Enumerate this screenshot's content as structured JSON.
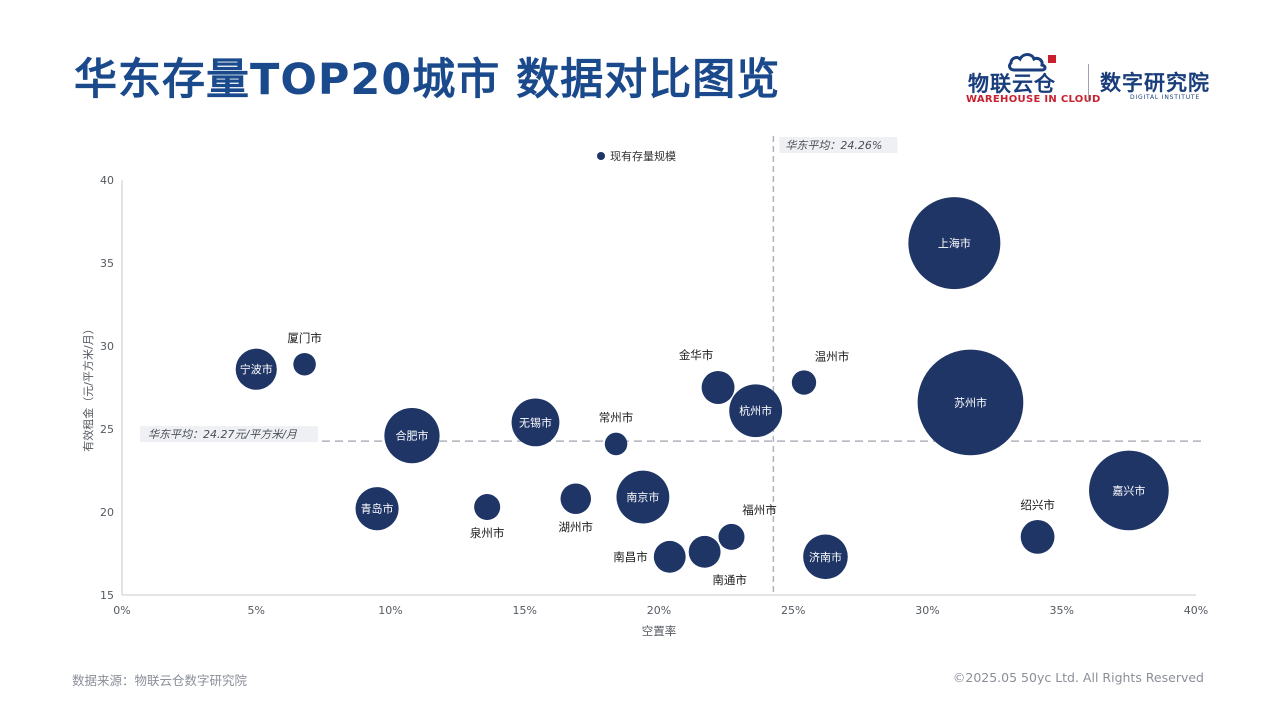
{
  "page": {
    "title": "华东存量TOP20城市 数据对比图览",
    "footer_source": "数据来源：物联云仓数字研究院",
    "footer_copyright": "©2025.05 50yc Ltd. All Rights Reserved"
  },
  "logos": {
    "brand_cn": "物联云仓",
    "brand_en": "WAREHOUSE IN CLOUD",
    "institute_cn": "数字研究院",
    "institute_en": "DIGITAL INSTITUTE"
  },
  "colors": {
    "bubble": "#1f3566",
    "title": "#1a4a8c",
    "reference_line": "#aeb3ba",
    "annotation_bg": "#eef0f3"
  },
  "chart_data": {
    "type": "scatter",
    "subtype": "bubble",
    "xlabel": "空置率",
    "ylabel": "有效租金（元/平方米/月）",
    "xlim": [
      0,
      0.4
    ],
    "ylim": [
      15,
      40
    ],
    "x_ticks": [
      0,
      0.05,
      0.1,
      0.15,
      0.2,
      0.25,
      0.3,
      0.35,
      0.4
    ],
    "x_tick_labels": [
      "0%",
      "5%",
      "10%",
      "15%",
      "20%",
      "25%",
      "30%",
      "35%",
      "40%"
    ],
    "y_ticks": [
      15,
      20,
      25,
      30,
      35,
      40
    ],
    "y_tick_labels": [
      "15",
      "20",
      "25",
      "30",
      "35",
      "40"
    ],
    "grid": false,
    "legend": {
      "label": "现有存量规模",
      "position": "top-center"
    },
    "reference_lines": {
      "x": {
        "value": 0.2426,
        "label": "华东平均：24.26%"
      },
      "y": {
        "value": 24.27,
        "label": "华东平均：24.27元/平方米/月"
      }
    },
    "points": [
      {
        "name": "上海市",
        "x": 0.31,
        "y": 36.2,
        "size": 1.0,
        "label_pos": "inside"
      },
      {
        "name": "苏州市",
        "x": 0.316,
        "y": 26.6,
        "size": 1.32,
        "label_pos": "inside"
      },
      {
        "name": "嘉兴市",
        "x": 0.375,
        "y": 21.3,
        "size": 0.75,
        "label_pos": "inside"
      },
      {
        "name": "绍兴市",
        "x": 0.341,
        "y": 18.5,
        "size": 0.135,
        "label_pos": "above"
      },
      {
        "name": "济南市",
        "x": 0.262,
        "y": 17.3,
        "size": 0.235,
        "label_pos": "inside"
      },
      {
        "name": "温州市",
        "x": 0.254,
        "y": 27.8,
        "size": 0.07,
        "label_pos": "above-right"
      },
      {
        "name": "杭州市",
        "x": 0.236,
        "y": 26.1,
        "size": 0.33,
        "label_pos": "inside"
      },
      {
        "name": "金华市",
        "x": 0.222,
        "y": 27.5,
        "size": 0.128,
        "label_pos": "above-left"
      },
      {
        "name": "福州市",
        "x": 0.227,
        "y": 18.5,
        "size": 0.08,
        "label_pos": "above-right"
      },
      {
        "name": "南通市",
        "x": 0.217,
        "y": 17.6,
        "size": 0.12,
        "label_pos": "below-right"
      },
      {
        "name": "南昌市",
        "x": 0.204,
        "y": 17.3,
        "size": 0.12,
        "label_pos": "left"
      },
      {
        "name": "南京市",
        "x": 0.194,
        "y": 20.9,
        "size": 0.33,
        "label_pos": "inside"
      },
      {
        "name": "常州市",
        "x": 0.184,
        "y": 24.1,
        "size": 0.06,
        "label_pos": "above"
      },
      {
        "name": "湖州市",
        "x": 0.169,
        "y": 20.8,
        "size": 0.11,
        "label_pos": "below"
      },
      {
        "name": "无锡市",
        "x": 0.154,
        "y": 25.4,
        "size": 0.27,
        "label_pos": "inside"
      },
      {
        "name": "泉州市",
        "x": 0.136,
        "y": 20.3,
        "size": 0.08,
        "label_pos": "below"
      },
      {
        "name": "合肥市",
        "x": 0.108,
        "y": 24.6,
        "size": 0.36,
        "label_pos": "inside"
      },
      {
        "name": "青岛市",
        "x": 0.095,
        "y": 20.2,
        "size": 0.22,
        "label_pos": "inside"
      },
      {
        "name": "宁波市",
        "x": 0.05,
        "y": 28.6,
        "size": 0.2,
        "label_pos": "inside"
      },
      {
        "name": "厦门市",
        "x": 0.068,
        "y": 28.9,
        "size": 0.06,
        "label_pos": "above"
      }
    ]
  }
}
